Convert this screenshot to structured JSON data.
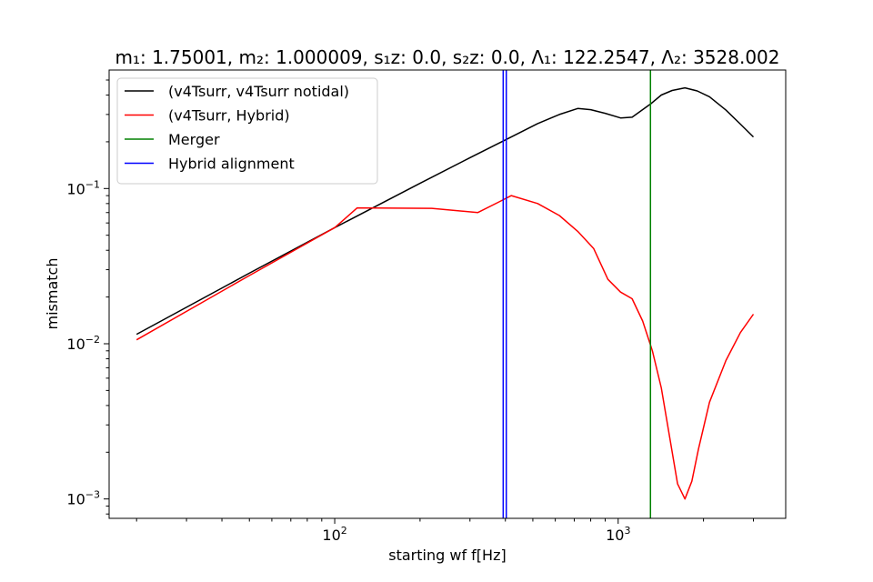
{
  "chart_data": {
    "type": "line",
    "title": "m₁: 1.75001, m₂: 1.000009, s₁z: 0.0, s₂z: 0.0, Λ₁: 122.2547, Λ₂: 3528.002",
    "xlabel": "starting wf f[Hz]",
    "ylabel": "mismatch",
    "xscale": "log",
    "yscale": "log",
    "xlim": [
      16,
      3900
    ],
    "ylim": [
      0.00075,
      0.58
    ],
    "x_ticks": [
      {
        "value": 100,
        "base": "10",
        "exp": "2"
      },
      {
        "value": 1000,
        "base": "10",
        "exp": "3"
      }
    ],
    "y_ticks": [
      {
        "value": 0.001,
        "base": "10",
        "exp": "−3"
      },
      {
        "value": 0.01,
        "base": "10",
        "exp": "−2"
      },
      {
        "value": 0.1,
        "base": "10",
        "exp": "−1"
      }
    ],
    "legend_position": "upper-left",
    "series": [
      {
        "name": "(v4Tsurr, v4Tsurr notidal)",
        "color": "#000000",
        "x": [
          20,
          50,
          100,
          200,
          300,
          420,
          520,
          620,
          720,
          800,
          900,
          1020,
          1120,
          1300,
          1420,
          1550,
          1720,
          1900,
          2100,
          2400,
          2700,
          3000
        ],
        "y": [
          0.0115,
          0.0285,
          0.056,
          0.108,
          0.158,
          0.215,
          0.262,
          0.3,
          0.328,
          0.322,
          0.305,
          0.285,
          0.288,
          0.35,
          0.4,
          0.428,
          0.445,
          0.425,
          0.39,
          0.32,
          0.26,
          0.215
        ]
      },
      {
        "name": "(v4Tsurr, Hybrid)",
        "color": "#ff0000",
        "x": [
          20,
          50,
          100,
          120,
          220,
          320,
          380,
          420,
          520,
          620,
          720,
          820,
          920,
          1020,
          1120,
          1220,
          1320,
          1420,
          1520,
          1620,
          1720,
          1820,
          1920,
          2100,
          2400,
          2700,
          3000
        ],
        "y": [
          0.0106,
          0.0275,
          0.056,
          0.075,
          0.0745,
          0.07,
          0.082,
          0.09,
          0.08,
          0.067,
          0.053,
          0.041,
          0.026,
          0.0215,
          0.0195,
          0.014,
          0.009,
          0.0052,
          0.0025,
          0.00125,
          0.001,
          0.0013,
          0.0021,
          0.0042,
          0.0078,
          0.0118,
          0.0155
        ]
      },
      {
        "name": "Merger",
        "color": "#008000",
        "vline": 1300
      },
      {
        "name": "Hybrid alignment",
        "color": "#0000ff",
        "vlines": [
          393,
          403
        ]
      }
    ]
  }
}
